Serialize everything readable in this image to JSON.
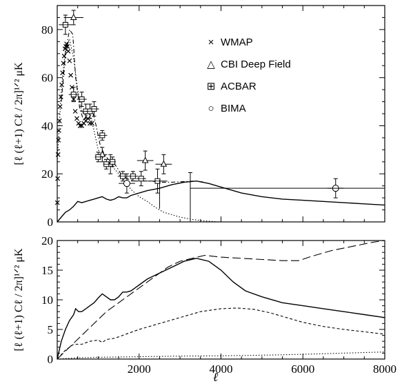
{
  "chart_data": [
    {
      "type": "scatter",
      "panel": "top",
      "xlim": [
        0,
        8000
      ],
      "ylim": [
        0,
        90
      ],
      "ylabel": "[ℓ (ℓ+1) Cℓ / 2π]¹ᐟ² μK",
      "yticks": [
        "0",
        "20",
        "40",
        "60",
        "80"
      ],
      "legend": [
        {
          "marker": "×",
          "label": "WMAP"
        },
        {
          "marker": "△",
          "label": "CBI Deep Field"
        },
        {
          "marker": "⊞",
          "label": "ACBAR"
        },
        {
          "marker": "○",
          "label": "BIMA"
        }
      ],
      "series": [
        {
          "name": "WMAP",
          "marker": "x",
          "points": [
            [
              3,
              8
            ],
            [
              10,
              18
            ],
            [
              20,
              28
            ],
            [
              30,
              34
            ],
            [
              40,
              38
            ],
            [
              55,
              42
            ],
            [
              70,
              48
            ],
            [
              90,
              52
            ],
            [
              110,
              57
            ],
            [
              130,
              62
            ],
            [
              150,
              66
            ],
            [
              170,
              69
            ],
            [
              190,
              72
            ],
            [
              210,
              73
            ],
            [
              230,
              74
            ],
            [
              250,
              73
            ],
            [
              270,
              71
            ],
            [
              300,
              67
            ],
            [
              330,
              61
            ],
            [
              360,
              56
            ],
            [
              400,
              51
            ],
            [
              440,
              46
            ],
            [
              480,
              43
            ],
            [
              520,
              41
            ],
            [
              560,
              40
            ],
            [
              600,
              40
            ],
            [
              650,
              41
            ],
            [
              700,
              42
            ],
            [
              750,
              43
            ],
            [
              800,
              41
            ],
            [
              850,
              41
            ]
          ]
        },
        {
          "name": "CBI Deep Field",
          "marker": "triangle",
          "points": [
            [
              400,
              85,
              3,
              6
            ],
            [
              1100,
              28,
              3,
              3
            ],
            [
              1300,
              24,
              4,
              3
            ],
            [
              2150,
              25.5,
              4,
              5
            ],
            [
              2600,
              24,
              4,
              5
            ]
          ]
        },
        {
          "name": "ACBAR",
          "marker": "square",
          "points": [
            [
              200,
              82,
              4,
              4
            ],
            [
              400,
              53,
              3,
              3
            ],
            [
              600,
              51,
              3,
              3
            ],
            [
              700,
              46,
              3,
              3
            ],
            [
              800,
              46,
              3,
              3
            ],
            [
              900,
              47,
              3,
              3
            ],
            [
              1000,
              27,
              2,
              2
            ],
            [
              1100,
              36,
              2,
              3
            ],
            [
              1200,
              24,
              2,
              2
            ],
            [
              1350,
              25,
              2,
              2
            ],
            [
              1600,
              19,
              2,
              3
            ],
            [
              1850,
              19,
              2,
              3
            ],
            [
              2050,
              18,
              3,
              3
            ],
            [
              2450,
              17,
              5,
              6
            ]
          ]
        },
        {
          "name": "BIMA",
          "marker": "circle",
          "points": [
            [
              1700,
              16,
              4,
              5
            ],
            [
              6800,
              14,
              4,
              5
            ]
          ]
        }
      ],
      "curves": [
        {
          "style": "solid",
          "points": [
            [
              0,
              0
            ],
            [
              100,
              2
            ],
            [
              200,
              4
            ],
            [
              300,
              5
            ],
            [
              400,
              6.5
            ],
            [
              500,
              8.5
            ],
            [
              600,
              8
            ],
            [
              700,
              8.5
            ],
            [
              800,
              9
            ],
            [
              900,
              9.5
            ],
            [
              1000,
              10
            ],
            [
              1100,
              10.5
            ],
            [
              1200,
              9.5
            ],
            [
              1300,
              9
            ],
            [
              1400,
              9.5
            ],
            [
              1500,
              10.5
            ],
            [
              1600,
              10
            ],
            [
              1700,
              10
            ],
            [
              1800,
              11
            ],
            [
              2000,
              12
            ],
            [
              2200,
              13
            ],
            [
              2500,
              14
            ],
            [
              2800,
              15.5
            ],
            [
              3100,
              16.5
            ],
            [
              3400,
              17
            ],
            [
              3700,
              16
            ],
            [
              4000,
              14.5
            ],
            [
              4500,
              12
            ],
            [
              5000,
              10.5
            ],
            [
              5500,
              9.5
            ],
            [
              6000,
              9
            ],
            [
              6500,
              8.5
            ],
            [
              7000,
              8
            ],
            [
              7500,
              7.5
            ],
            [
              8000,
              7
            ]
          ]
        },
        {
          "style": "dashdot",
          "points": [
            [
              100,
              50
            ],
            [
              200,
              70
            ],
            [
              300,
              80
            ],
            [
              380,
              78
            ],
            [
              450,
              60
            ],
            [
              550,
              47
            ],
            [
              650,
              42
            ],
            [
              750,
              46
            ],
            [
              850,
              47
            ],
            [
              950,
              40
            ],
            [
              1050,
              32
            ],
            [
              1150,
              28
            ],
            [
              1250,
              26
            ],
            [
              1350,
              25
            ],
            [
              1450,
              23
            ],
            [
              1550,
              20
            ],
            [
              1700,
              18
            ],
            [
              1900,
              17
            ],
            [
              2100,
              17
            ],
            [
              2300,
              17
            ],
            [
              2500,
              16.5
            ],
            [
              2800,
              16.5
            ],
            [
              3100,
              16.8
            ],
            [
              3400,
              17
            ],
            [
              3600,
              16.5
            ]
          ]
        },
        {
          "style": "dotted",
          "points": [
            [
              0,
              25
            ],
            [
              100,
              55
            ],
            [
              200,
              72
            ],
            [
              300,
              76
            ],
            [
              400,
              68
            ],
            [
              500,
              55
            ],
            [
              600,
              46
            ],
            [
              700,
              44
            ],
            [
              800,
              45
            ],
            [
              900,
              38
            ],
            [
              1000,
              30
            ],
            [
              1100,
              27
            ],
            [
              1200,
              25
            ],
            [
              1300,
              24
            ],
            [
              1400,
              22
            ],
            [
              1500,
              20
            ],
            [
              1600,
              18
            ],
            [
              1700,
              16
            ],
            [
              1800,
              13.5
            ],
            [
              1900,
              12
            ],
            [
              2000,
              10.5
            ],
            [
              2200,
              8.5
            ],
            [
              2400,
              6
            ],
            [
              2600,
              4
            ],
            [
              2800,
              3
            ],
            [
              3000,
              2
            ],
            [
              3300,
              1
            ],
            [
              3600,
              0.4
            ],
            [
              4000,
              0
            ]
          ]
        }
      ]
    },
    {
      "type": "line",
      "panel": "bottom",
      "xlim": [
        0,
        8000
      ],
      "ylim": [
        0,
        20
      ],
      "xlabel": "ℓ",
      "ylabel": "[ℓ (ℓ+1) Cℓ / 2π]¹ᐟ² μK",
      "xticks": [
        "2000",
        "4000",
        "6000",
        "8000"
      ],
      "yticks": [
        "0",
        "5",
        "10",
        "15",
        "20"
      ],
      "series": [
        {
          "style": "solid",
          "points": [
            [
              0,
              0
            ],
            [
              100,
              3
            ],
            [
              200,
              5
            ],
            [
              300,
              6.5
            ],
            [
              400,
              7.5
            ],
            [
              450,
              8.5
            ],
            [
              520,
              8
            ],
            [
              600,
              8
            ],
            [
              700,
              8.5
            ],
            [
              800,
              9
            ],
            [
              900,
              9.5
            ],
            [
              1000,
              10.3
            ],
            [
              1100,
              11
            ],
            [
              1200,
              10.5
            ],
            [
              1300,
              10
            ],
            [
              1400,
              10
            ],
            [
              1500,
              10.5
            ],
            [
              1600,
              11.3
            ],
            [
              1700,
              11.3
            ],
            [
              1800,
              11.5
            ],
            [
              1900,
              12
            ],
            [
              2000,
              12.5
            ],
            [
              2200,
              13.5
            ],
            [
              2500,
              14.5
            ],
            [
              2800,
              15.5
            ],
            [
              3100,
              16.5
            ],
            [
              3400,
              17
            ],
            [
              3700,
              16.5
            ],
            [
              4000,
              15
            ],
            [
              4300,
              13
            ],
            [
              4600,
              11.5
            ],
            [
              5000,
              10.5
            ],
            [
              5500,
              9.5
            ],
            [
              6000,
              9
            ],
            [
              6500,
              8.5
            ],
            [
              7000,
              8
            ],
            [
              7500,
              7.5
            ],
            [
              8000,
              7
            ]
          ]
        },
        {
          "style": "long-dash",
          "points": [
            [
              0,
              0
            ],
            [
              300,
              2
            ],
            [
              600,
              4
            ],
            [
              900,
              6
            ],
            [
              1200,
              8
            ],
            [
              1500,
              9.5
            ],
            [
              1800,
              11
            ],
            [
              2100,
              12.5
            ],
            [
              2400,
              14
            ],
            [
              2700,
              15.5
            ],
            [
              3000,
              16.5
            ],
            [
              3300,
              17
            ],
            [
              3600,
              17.5
            ],
            [
              4000,
              17.2
            ],
            [
              4500,
              17
            ],
            [
              5000,
              16.8
            ],
            [
              5500,
              16.6
            ],
            [
              5900,
              16.6
            ],
            [
              6200,
              17.3
            ],
            [
              6700,
              18.3
            ],
            [
              7200,
              19
            ],
            [
              7700,
              19.7
            ],
            [
              8000,
              20
            ]
          ]
        },
        {
          "style": "short-dash",
          "points": [
            [
              0,
              0
            ],
            [
              200,
              1.5
            ],
            [
              400,
              2.5
            ],
            [
              600,
              2.5
            ],
            [
              800,
              3
            ],
            [
              1000,
              3.2
            ],
            [
              1100,
              2.8
            ],
            [
              1200,
              3.3
            ],
            [
              1400,
              3.5
            ],
            [
              1600,
              4
            ],
            [
              1800,
              4.5
            ],
            [
              2000,
              5
            ],
            [
              2500,
              6
            ],
            [
              3000,
              7
            ],
            [
              3500,
              8
            ],
            [
              4000,
              8.5
            ],
            [
              4400,
              8.6
            ],
            [
              4800,
              8.4
            ],
            [
              5200,
              7.8
            ],
            [
              5600,
              7
            ],
            [
              6000,
              6.2
            ],
            [
              6500,
              5.5
            ],
            [
              7000,
              5
            ],
            [
              7500,
              4.6
            ],
            [
              8000,
              4.2
            ]
          ]
        },
        {
          "style": "dotted",
          "points": [
            [
              0,
              0
            ],
            [
              500,
              0.2
            ],
            [
              1000,
              0.3
            ],
            [
              2000,
              0.4
            ],
            [
              3000,
              0.5
            ],
            [
              4000,
              0.55
            ],
            [
              5000,
              0.65
            ],
            [
              6000,
              0.8
            ],
            [
              7000,
              1.0
            ],
            [
              8000,
              1.2
            ]
          ]
        }
      ]
    }
  ]
}
